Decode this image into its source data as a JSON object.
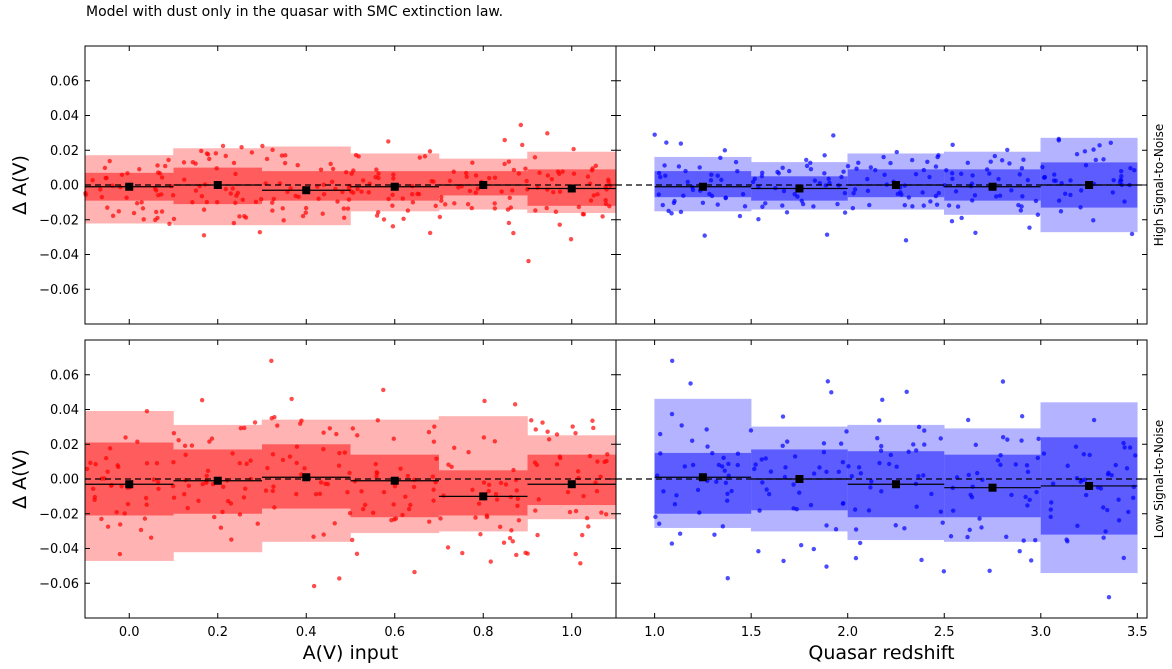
{
  "title": "Model with dust only in the quasar with SMC extinction law.",
  "chart_data": [
    {
      "type": "scatter",
      "panel": "top-left",
      "row_label": "High Signal-to-Noise",
      "xlabel": "",
      "ylabel": "Δ A(V)",
      "xlim": [
        -0.1,
        1.1
      ],
      "ylim": [
        -0.08,
        0.08
      ],
      "yticks": [
        "0.06",
        "0.04",
        "0.02",
        "0.00",
        "−0.02",
        "−0.04",
        "−0.06"
      ],
      "xticks": [],
      "color": "#ff0000",
      "reference_line": 0,
      "bins": [
        {
          "x_range": [
            -0.1,
            0.1
          ],
          "median": -0.001,
          "inner": [
            -0.009,
            0.007
          ],
          "outer": [
            -0.022,
            0.017
          ]
        },
        {
          "x_range": [
            0.1,
            0.3
          ],
          "median": 0.0,
          "inner": [
            -0.011,
            0.01
          ],
          "outer": [
            -0.023,
            0.021
          ]
        },
        {
          "x_range": [
            0.3,
            0.5
          ],
          "median": -0.003,
          "inner": [
            -0.009,
            0.008
          ],
          "outer": [
            -0.023,
            0.022
          ]
        },
        {
          "x_range": [
            0.5,
            0.7
          ],
          "median": -0.001,
          "inner": [
            -0.009,
            0.008
          ],
          "outer": [
            -0.015,
            0.018
          ]
        },
        {
          "x_range": [
            0.7,
            0.9
          ],
          "median": 0.0,
          "inner": [
            -0.006,
            0.008
          ],
          "outer": [
            -0.014,
            0.015
          ]
        },
        {
          "x_range": [
            0.9,
            1.1
          ],
          "median": -0.002,
          "inner": [
            -0.012,
            0.009
          ],
          "outer": [
            -0.016,
            0.019
          ]
        }
      ],
      "scatter_spread": 0.012
    },
    {
      "type": "scatter",
      "panel": "top-right",
      "row_label": "High Signal-to-Noise",
      "xlabel": "",
      "ylabel": "",
      "xlim": [
        0.8,
        3.55
      ],
      "ylim": [
        -0.08,
        0.08
      ],
      "yticks": [],
      "xticks": [],
      "color": "#0000ff",
      "reference_line": 0,
      "bins": [
        {
          "x_range": [
            1.0,
            1.5
          ],
          "median": -0.001,
          "inner": [
            -0.007,
            0.008
          ],
          "outer": [
            -0.015,
            0.016
          ]
        },
        {
          "x_range": [
            1.5,
            2.0
          ],
          "median": -0.002,
          "inner": [
            -0.009,
            0.005
          ],
          "outer": [
            -0.014,
            0.013
          ]
        },
        {
          "x_range": [
            2.0,
            2.5
          ],
          "median": 0.0,
          "inner": [
            -0.007,
            0.009
          ],
          "outer": [
            -0.014,
            0.018
          ]
        },
        {
          "x_range": [
            2.5,
            3.0
          ],
          "median": -0.001,
          "inner": [
            -0.009,
            0.009
          ],
          "outer": [
            -0.017,
            0.019
          ]
        },
        {
          "x_range": [
            3.0,
            3.5
          ],
          "median": 0.0,
          "inner": [
            -0.013,
            0.013
          ],
          "outer": [
            -0.027,
            0.027
          ]
        }
      ],
      "scatter_spread": 0.011
    },
    {
      "type": "scatter",
      "panel": "bottom-left",
      "row_label": "Low Signal-to-Noise",
      "xlabel": "A(V) input",
      "ylabel": "Δ A(V)",
      "xlim": [
        -0.1,
        1.1
      ],
      "ylim": [
        -0.08,
        0.08
      ],
      "yticks": [
        "0.06",
        "0.04",
        "0.02",
        "0.00",
        "−0.02",
        "−0.04",
        "−0.06"
      ],
      "xticks": [
        "0.0",
        "0.2",
        "0.4",
        "0.6",
        "0.8",
        "1.0"
      ],
      "color": "#ff0000",
      "reference_line": 0,
      "bins": [
        {
          "x_range": [
            -0.1,
            0.1
          ],
          "median": -0.003,
          "inner": [
            -0.021,
            0.021
          ],
          "outer": [
            -0.047,
            0.039
          ]
        },
        {
          "x_range": [
            0.1,
            0.3
          ],
          "median": -0.001,
          "inner": [
            -0.02,
            0.017
          ],
          "outer": [
            -0.042,
            0.031
          ]
        },
        {
          "x_range": [
            0.3,
            0.5
          ],
          "median": 0.001,
          "inner": [
            -0.017,
            0.02
          ],
          "outer": [
            -0.036,
            0.034
          ]
        },
        {
          "x_range": [
            0.5,
            0.7
          ],
          "median": -0.001,
          "inner": [
            -0.022,
            0.014
          ],
          "outer": [
            -0.031,
            0.034
          ]
        },
        {
          "x_range": [
            0.7,
            0.9
          ],
          "median": -0.01,
          "inner": [
            -0.021,
            0.005
          ],
          "outer": [
            -0.03,
            0.036
          ]
        },
        {
          "x_range": [
            0.9,
            1.1
          ],
          "median": -0.003,
          "inner": [
            -0.015,
            0.014
          ],
          "outer": [
            -0.023,
            0.025
          ]
        }
      ],
      "scatter_spread": 0.022
    },
    {
      "type": "scatter",
      "panel": "bottom-right",
      "row_label": "Low Signal-to-Noise",
      "xlabel": "Quasar redshift",
      "ylabel": "",
      "xlim": [
        0.8,
        3.55
      ],
      "ylim": [
        -0.08,
        0.08
      ],
      "yticks": [],
      "xticks": [
        "1.0",
        "1.5",
        "2.0",
        "2.5",
        "3.0",
        "3.5"
      ],
      "color": "#0000ff",
      "reference_line": 0,
      "bins": [
        {
          "x_range": [
            1.0,
            1.5
          ],
          "median": 0.001,
          "inner": [
            -0.02,
            0.015
          ],
          "outer": [
            -0.028,
            0.046
          ]
        },
        {
          "x_range": [
            1.5,
            2.0
          ],
          "median": 0.0,
          "inner": [
            -0.018,
            0.017
          ],
          "outer": [
            -0.03,
            0.03
          ]
        },
        {
          "x_range": [
            2.0,
            2.5
          ],
          "median": -0.003,
          "inner": [
            -0.022,
            0.016
          ],
          "outer": [
            -0.035,
            0.031
          ]
        },
        {
          "x_range": [
            2.5,
            3.0
          ],
          "median": -0.005,
          "inner": [
            -0.022,
            0.014
          ],
          "outer": [
            -0.036,
            0.029
          ]
        },
        {
          "x_range": [
            3.0,
            3.5
          ],
          "median": -0.004,
          "inner": [
            -0.032,
            0.024
          ],
          "outer": [
            -0.054,
            0.044
          ]
        }
      ],
      "scatter_spread": 0.024
    }
  ]
}
